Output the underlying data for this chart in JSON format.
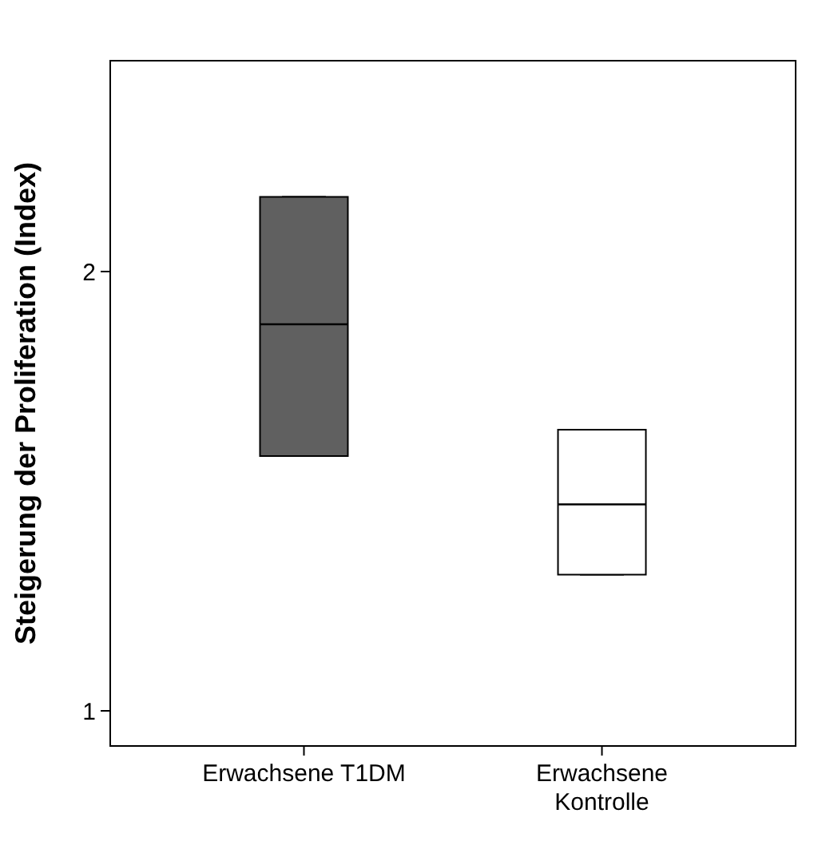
{
  "chart_data": {
    "type": "box",
    "ylabel": "Steigerung der Proliferation (Index)",
    "categories": [
      "Erwachsene T1DM",
      "Erwachsene\nKontrolle"
    ],
    "boxes": [
      {
        "low": 1.58,
        "q1": 1.58,
        "median": 1.88,
        "q3": 2.17,
        "high": 2.17
      },
      {
        "low": 1.31,
        "q1": 1.31,
        "median": 1.47,
        "q3": 1.64,
        "high": 1.64
      }
    ],
    "colors": [
      "#606060",
      "#ffffff"
    ],
    "ylim": [
      0.92,
      2.48
    ],
    "yticks": [
      1,
      2
    ],
    "grid": false
  }
}
